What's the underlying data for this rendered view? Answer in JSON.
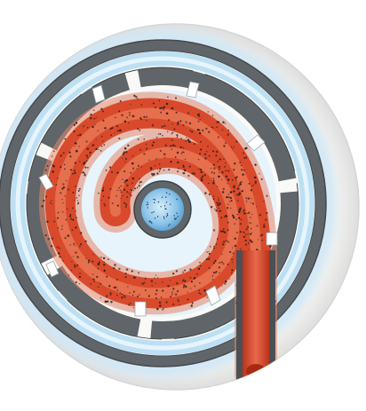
{
  "diagram": {
    "title": "",
    "components": [
      {
        "id": "outer-disc",
        "label": ""
      },
      {
        "id": "outer-housing-ring",
        "label": ""
      },
      {
        "id": "inner-channel-wall",
        "label": ""
      },
      {
        "id": "spiral-flow",
        "label": ""
      },
      {
        "id": "central-core",
        "label": ""
      },
      {
        "id": "inlet-pipe",
        "label": ""
      },
      {
        "id": "vent-slots",
        "label": ""
      }
    ],
    "colors": {
      "background": "#ffffff",
      "disc": "#fbfbf8",
      "disc_edge": "#d9d9d9",
      "wall_gray": "#5f6568",
      "wall_dark": "#3d4245",
      "coolant_blue": "#b9dcf2",
      "coolant_light": "#e3f2fb",
      "flow_red": "#d94b2b",
      "flow_red_light": "#ec8b6b",
      "particle": "#2b1b17",
      "core_blue": "#7fbde5"
    }
  }
}
